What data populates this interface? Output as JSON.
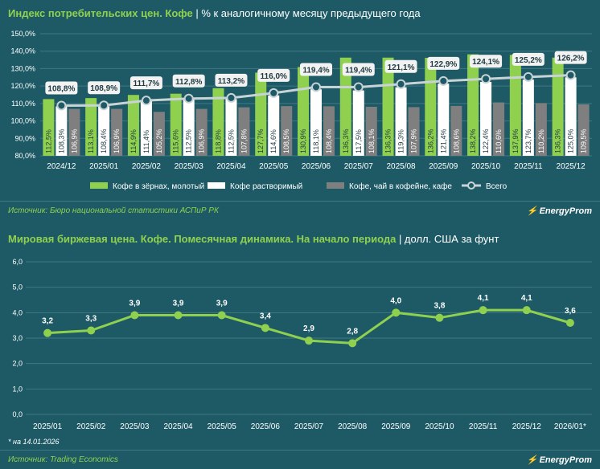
{
  "top": {
    "title_accent": "Индекс потребительских цен. Кофе",
    "title_rest": " | % к аналогичному месяцу предыдущего года",
    "source": "Источник: Бюро национальной статистики АСПиР РК",
    "brand": "EnergyProm"
  },
  "bottom": {
    "title_accent": "Мировая биржевая цена. Кофе. Помесячная динамика. На начало периода",
    "title_rest": " | долл. США за фунт",
    "footnote": "* на 14.01.2026",
    "source": "Источник: Trading Economics",
    "brand": "EnergyProm"
  },
  "colors": {
    "background": "#1e5a66",
    "green": "#8fd14f",
    "white": "#ffffff",
    "gray": "#7f7f7f",
    "line": "#c8d3d6",
    "grid": "#3f7883"
  },
  "chart_data": [
    {
      "type": "bar",
      "categories": [
        "2024/12",
        "2025/01",
        "2025/02",
        "2025/03",
        "2025/04",
        "2025/05",
        "2025/06",
        "2025/07",
        "2025/08",
        "2025/09",
        "2025/10",
        "2025/11",
        "2025/12"
      ],
      "series": [
        {
          "name": "Кофе в зёрнах, молотый",
          "kind": "bar",
          "color": "#8fd14f",
          "values": [
            112.5,
            113.1,
            114.9,
            115.6,
            118.8,
            127.7,
            130.9,
            136.3,
            136.3,
            136.2,
            138.2,
            137.9,
            136.3
          ],
          "labels": [
            "112,5%",
            "113,1%",
            "114,9%",
            "115,6%",
            "118,8%",
            "127,7%",
            "130,9%",
            "136,3%",
            "136,3%",
            "136,2%",
            "138,2%",
            "137,9%",
            "136,3%"
          ]
        },
        {
          "name": "Кофе растворимый",
          "kind": "bar",
          "color": "#ffffff",
          "values": [
            108.3,
            108.4,
            111.4,
            112.5,
            112.5,
            114.6,
            118.1,
            117.5,
            119.3,
            121.4,
            122.4,
            123.7,
            125.0
          ],
          "labels": [
            "108,3%",
            "108,4%",
            "111,4%",
            "112,5%",
            "112,5%",
            "114,6%",
            "118,1%",
            "117,5%",
            "119,3%",
            "121,4%",
            "122,4%",
            "123,7%",
            "125,0%"
          ]
        },
        {
          "name": "Кофе, чай в кофейне, кафе",
          "kind": "bar",
          "color": "#7f7f7f",
          "values": [
            106.9,
            106.9,
            105.2,
            106.9,
            107.8,
            108.5,
            108.4,
            108.1,
            107.9,
            108.6,
            110.6,
            110.2,
            109.5
          ],
          "labels": [
            "106,9%",
            "106,9%",
            "105,2%",
            "106,9%",
            "107,8%",
            "108,5%",
            "108,4%",
            "108,1%",
            "107,9%",
            "108,6%",
            "110,6%",
            "110,2%",
            "109,5%"
          ]
        },
        {
          "name": "Всего",
          "kind": "line",
          "color": "#c8d3d6",
          "values": [
            108.8,
            108.9,
            111.7,
            112.8,
            113.2,
            116.0,
            119.4,
            119.4,
            121.1,
            122.9,
            124.1,
            125.2,
            126.2
          ],
          "labels": [
            "108,8%",
            "108,9%",
            "111,7%",
            "112,8%",
            "113,2%",
            "116,0%",
            "119,4%",
            "119,4%",
            "121,1%",
            "122,9%",
            "124,1%",
            "125,2%",
            "126,2%"
          ]
        }
      ],
      "ylim": [
        80,
        150
      ],
      "yticks": [
        "80,0%",
        "90,0%",
        "100,0%",
        "110,0%",
        "120,0%",
        "130,0%",
        "140,0%",
        "150,0%"
      ],
      "grid": true,
      "legend": "bottom"
    },
    {
      "type": "line",
      "categories": [
        "2025/01",
        "2025/02",
        "2025/03",
        "2025/04",
        "2025/05",
        "2025/06",
        "2025/07",
        "2025/08",
        "2025/09",
        "2025/10",
        "2025/11",
        "2025/12",
        "2026/01*"
      ],
      "series": [
        {
          "name": "",
          "color": "#8fd14f",
          "values": [
            3.2,
            3.3,
            3.9,
            3.9,
            3.9,
            3.4,
            2.9,
            2.8,
            4.0,
            3.8,
            4.1,
            4.1,
            3.6
          ],
          "labels": [
            "3,2",
            "3,3",
            "3,9",
            "3,9",
            "3,9",
            "3,4",
            "2,9",
            "2,8",
            "4,0",
            "3,8",
            "4,1",
            "4,1",
            "3,6"
          ]
        }
      ],
      "ylim": [
        0,
        6
      ],
      "yticks": [
        "0,0",
        "1,0",
        "2,0",
        "3,0",
        "4,0",
        "5,0",
        "6,0"
      ],
      "grid": true
    }
  ]
}
